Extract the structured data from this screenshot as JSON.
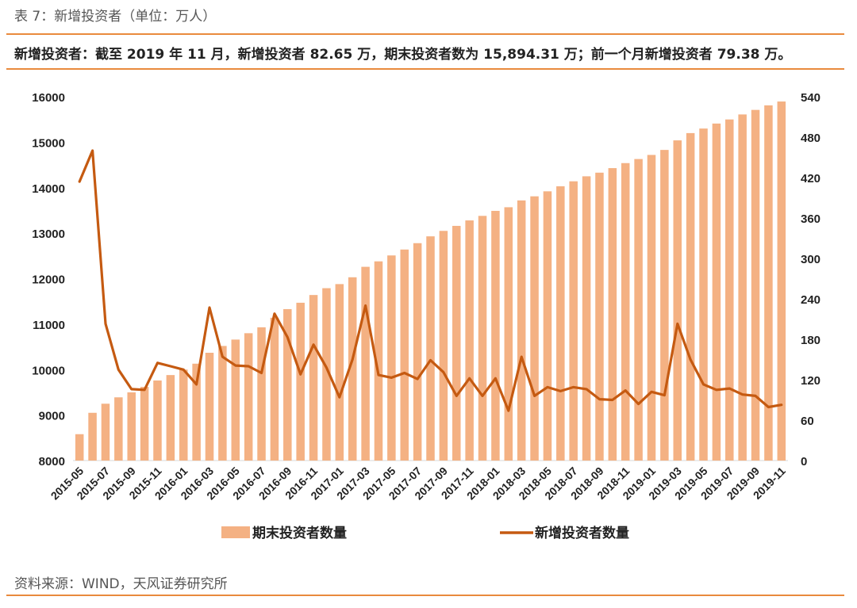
{
  "header": {
    "caption": "表 7：新增投资者（单位：万人）",
    "summary": "新增投资者：截至 2019 年 11 月，新增投资者 82.65 万，期末投资者数为 15,894.31 万；前一个月新增投资者 79.38 万。"
  },
  "footer": {
    "source": "资料来源：WIND，天风证券研究所"
  },
  "colors": {
    "bar": "#f4b183",
    "line": "#c55a11",
    "rule": "#e98a3d"
  },
  "chart_data": {
    "type": "bar+line",
    "x": [
      "2015-05",
      "2015-06",
      "2015-07",
      "2015-08",
      "2015-09",
      "2015-10",
      "2015-11",
      "2015-12",
      "2016-01",
      "2016-02",
      "2016-03",
      "2016-04",
      "2016-05",
      "2016-06",
      "2016-07",
      "2016-08",
      "2016-09",
      "2016-10",
      "2016-11",
      "2016-12",
      "2017-01",
      "2017-02",
      "2017-03",
      "2017-04",
      "2017-05",
      "2017-06",
      "2017-07",
      "2017-08",
      "2017-09",
      "2017-10",
      "2017-11",
      "2017-12",
      "2018-01",
      "2018-02",
      "2018-03",
      "2018-04",
      "2018-05",
      "2018-06",
      "2018-07",
      "2018-08",
      "2018-09",
      "2018-10",
      "2018-11",
      "2018-12",
      "2019-01",
      "2019-02",
      "2019-03",
      "2019-04",
      "2019-05",
      "2019-06",
      "2019-07",
      "2019-08",
      "2019-09",
      "2019-10",
      "2019-11"
    ],
    "x_tick_labels": [
      "2015-05",
      "2015-07",
      "2015-09",
      "2015-11",
      "2016-01",
      "2016-03",
      "2016-05",
      "2016-07",
      "2016-09",
      "2016-11",
      "2017-01",
      "2017-03",
      "2017-05",
      "2017-07",
      "2017-09",
      "2017-11",
      "2018-01",
      "2018-03",
      "2018-05",
      "2018-07",
      "2018-09",
      "2018-11",
      "2019-01",
      "2019-03",
      "2019-05",
      "2019-07",
      "2019-09",
      "2019-11"
    ],
    "series": [
      {
        "name": "期末投资者数量",
        "type": "bar",
        "axis": "left",
        "values": [
          8580,
          9050,
          9250,
          9390,
          9500,
          9620,
          9760,
          9880,
          10000,
          10130,
          10370,
          10520,
          10660,
          10800,
          10930,
          11140,
          11330,
          11470,
          11640,
          11790,
          11880,
          12030,
          12260,
          12380,
          12510,
          12640,
          12780,
          12930,
          13050,
          13160,
          13280,
          13380,
          13490,
          13570,
          13720,
          13810,
          13920,
          14030,
          14140,
          14250,
          14330,
          14430,
          14540,
          14630,
          14720,
          14830,
          15040,
          15200,
          15300,
          15410,
          15500,
          15610,
          15710,
          15810,
          15894.31
        ]
      },
      {
        "name": "新增投资者数量",
        "type": "line",
        "axis": "right",
        "values": [
          414,
          460,
          203,
          135,
          106,
          105,
          145,
          140,
          135,
          113,
          227,
          154,
          141,
          140,
          130,
          218,
          183,
          128,
          172,
          138,
          94,
          150,
          230,
          127,
          123,
          130,
          121,
          149,
          131,
          96,
          122,
          96,
          122,
          74,
          154,
          96,
          109,
          103,
          109,
          106,
          91,
          90,
          104,
          84,
          102,
          97,
          203,
          150,
          113,
          105,
          107,
          98,
          96,
          79.38,
          82.65
        ]
      }
    ],
    "y_left": {
      "min": 8000,
      "max": 16000,
      "ticks": [
        8000,
        9000,
        10000,
        11000,
        12000,
        13000,
        14000,
        15000,
        16000
      ]
    },
    "y_right": {
      "min": 0,
      "max": 540,
      "ticks": [
        0,
        60,
        120,
        180,
        240,
        300,
        360,
        420,
        480,
        540
      ]
    },
    "grid": false,
    "legend": "bottom"
  }
}
